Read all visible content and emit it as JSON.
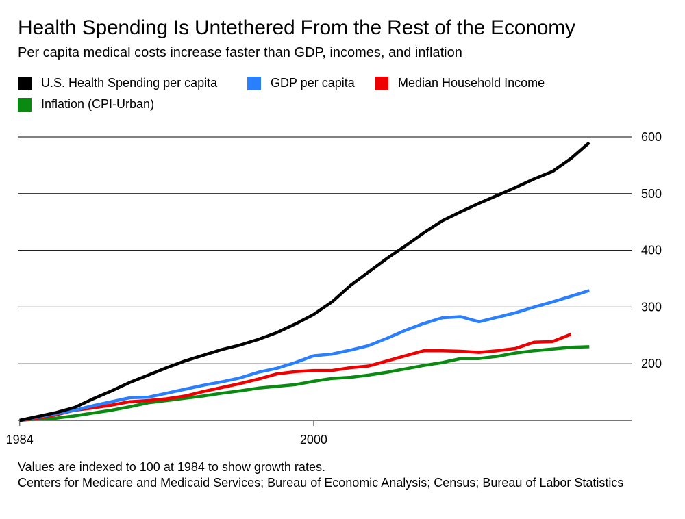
{
  "chart_data": {
    "type": "line",
    "title": "Health Spending Is Untethered From the Rest of the Economy",
    "subtitle": "Per capita medical costs increase faster than GDP, incomes, and inflation",
    "x": [
      1984,
      1985,
      1986,
      1987,
      1988,
      1989,
      1990,
      1991,
      1992,
      1993,
      1994,
      1995,
      1996,
      1997,
      1998,
      1999,
      2000,
      2001,
      2002,
      2003,
      2004,
      2005,
      2006,
      2007,
      2008,
      2009,
      2010,
      2011,
      2012,
      2013,
      2014,
      2015,
      2016
    ],
    "x_tick_labels": [
      "1984",
      "2000"
    ],
    "x_ticks": [
      1984,
      2000
    ],
    "y_ticks": [
      200,
      300,
      400,
      500,
      600
    ],
    "y_tick_labels": [
      "200",
      "300",
      "400",
      "500",
      "600"
    ],
    "ylim": [
      100,
      600
    ],
    "xlim": [
      1983.9,
      2017.3
    ],
    "grid": true,
    "legend_position": "top",
    "series": [
      {
        "name": "U.S. Health Spending per capita",
        "color": "#000000",
        "values": [
          100,
          107,
          114,
          123,
          138,
          152,
          167,
          180,
          193,
          205,
          215,
          225,
          233,
          243,
          255,
          270,
          287,
          309,
          338,
          362,
          386,
          408,
          431,
          452,
          468,
          483,
          497,
          511,
          526,
          539,
          562,
          590,
          null
        ]
      },
      {
        "name": "GDP per capita",
        "color": "#2a7fff",
        "values": [
          100,
          106,
          112,
          118,
          126,
          133,
          140,
          141,
          148,
          155,
          162,
          168,
          175,
          185,
          192,
          202,
          214,
          217,
          224,
          232,
          245,
          259,
          271,
          281,
          283,
          274,
          282,
          290,
          300,
          309,
          319,
          329,
          null
        ]
      },
      {
        "name": "Median Household Income",
        "color": "#ee0000",
        "values": [
          100,
          104,
          110,
          118,
          122,
          127,
          133,
          135,
          138,
          143,
          151,
          158,
          165,
          173,
          182,
          186,
          188,
          188,
          193,
          196,
          205,
          214,
          223,
          223,
          222,
          220,
          223,
          227,
          238,
          239,
          252,
          null,
          null
        ]
      },
      {
        "name": "Inflation (CPI-Urban)",
        "color": "#0b8a12",
        "values": [
          100,
          103,
          104,
          108,
          113,
          118,
          124,
          131,
          135,
          139,
          143,
          148,
          152,
          157,
          160,
          163,
          169,
          174,
          176,
          180,
          185,
          191,
          197,
          202,
          209,
          209,
          213,
          219,
          223,
          226,
          229,
          230,
          null
        ]
      }
    ],
    "notes": [
      "Values are indexed to 100 at 1984 to show growth rates.",
      "Centers for Medicare and Medicaid Services; Bureau of Economic Analysis; Census; Bureau of Labor Statistics"
    ]
  }
}
